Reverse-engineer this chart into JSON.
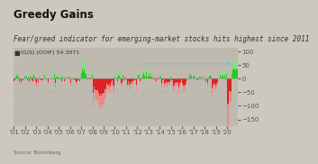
{
  "title": "Greedy Gains",
  "subtitle": "Fear/greed indicator for emerging-market stocks hits highest since 2011",
  "legend_label": "IG(S) (OOIF) 54.3071",
  "source": "Source: Bloomberg",
  "x_tick_labels": [
    "'01",
    "'02",
    "'03",
    "'04",
    "'05",
    "'06",
    "'07",
    "'08",
    "'09",
    "'10",
    "'11",
    "'12",
    "'13",
    "'14",
    "'15",
    "'16",
    "'17",
    "'18",
    "'19",
    "'20"
  ],
  "y_ticks": [
    100,
    50,
    0,
    -50,
    -100,
    -150
  ],
  "y_min": -175,
  "y_max": 115,
  "bg_color": "#cdc8be",
  "plot_bg_color": "#bfbab0",
  "bar_pos_color": "#22cc22",
  "bar_neg_color": "#dd2222",
  "bar_pos_alpha_color": "#88dd88",
  "bar_neg_alpha_color": "#ee8888",
  "arrow_color": "#44dddd",
  "title_fontsize": 8.5,
  "subtitle_fontsize": 5.5,
  "legend_fontsize": 4.5,
  "axis_fontsize": 5
}
